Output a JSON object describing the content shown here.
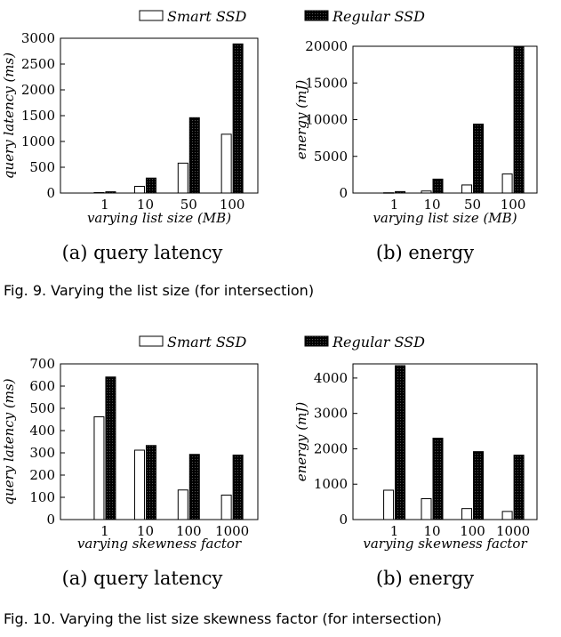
{
  "legend": {
    "smart": "Smart SSD",
    "regular": "Regular SSD"
  },
  "fig9": {
    "caption": "Fig. 9. Varying the list size (for intersection)"
  },
  "fig10": {
    "caption": "Fig. 10. Varying the list size skewness factor (for intersection)"
  },
  "chart_data": [
    {
      "id": "fig9a",
      "type": "bar",
      "subtitle": "(a) query latency",
      "xlabel": "varying list size (MB)",
      "ylabel": "query latency (ms)",
      "categories": [
        "1",
        "10",
        "50",
        "100"
      ],
      "ylim": [
        0,
        3000
      ],
      "yticks": [
        0,
        500,
        1000,
        1500,
        2000,
        2500,
        3000
      ],
      "series": [
        {
          "name": "Smart SSD",
          "values": [
            10,
            130,
            580,
            1140
          ]
        },
        {
          "name": "Regular SSD",
          "values": [
            25,
            290,
            1460,
            2890
          ]
        }
      ]
    },
    {
      "id": "fig9b",
      "type": "bar",
      "subtitle": "(b) energy",
      "xlabel": "varying list size (MB)",
      "ylabel": "energy (mJ)",
      "categories": [
        "1",
        "10",
        "50",
        "100"
      ],
      "ylim": [
        0,
        20000
      ],
      "yticks": [
        0,
        5000,
        10000,
        15000,
        20000
      ],
      "series": [
        {
          "name": "Smart SSD",
          "values": [
            40,
            280,
            1100,
            2600
          ]
        },
        {
          "name": "Regular SSD",
          "values": [
            200,
            1900,
            9400,
            20000
          ]
        }
      ]
    },
    {
      "id": "fig10a",
      "type": "bar",
      "subtitle": "(a) query latency",
      "xlabel": "varying skewness factor",
      "ylabel": "query latency (ms)",
      "categories": [
        "1",
        "10",
        "100",
        "1000"
      ],
      "ylim": [
        0,
        700
      ],
      "yticks": [
        0,
        100,
        200,
        300,
        400,
        500,
        600,
        700
      ],
      "series": [
        {
          "name": "Smart SSD",
          "values": [
            462,
            312,
            133,
            110
          ]
        },
        {
          "name": "Regular SSD",
          "values": [
            641,
            333,
            293,
            290
          ]
        }
      ]
    },
    {
      "id": "fig10b",
      "type": "bar",
      "subtitle": "(b) energy",
      "xlabel": "varying skewness factor",
      "ylabel": "energy (mJ)",
      "categories": [
        "1",
        "10",
        "100",
        "1000"
      ],
      "ylim": [
        0,
        4400
      ],
      "yticks": [
        0,
        1000,
        2000,
        3000,
        4000
      ],
      "series": [
        {
          "name": "Smart SSD",
          "values": [
            830,
            590,
            310,
            230
          ]
        },
        {
          "name": "Regular SSD",
          "values": [
            4350,
            2300,
            1920,
            1820
          ]
        }
      ]
    }
  ]
}
